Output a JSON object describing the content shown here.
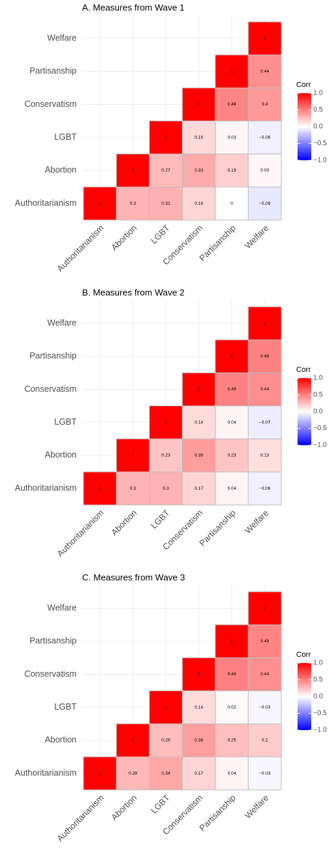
{
  "chart_data": [
    {
      "type": "heatmap",
      "title": "A. Measures from Wave 1",
      "categories": [
        "Authoritarianism",
        "Abortion",
        "LGBT",
        "Conservatism",
        "Partisanship",
        "Welfare"
      ],
      "values": [
        [
          1,
          0.3,
          0.31,
          0.16,
          0,
          -0.09
        ],
        [
          null,
          1,
          0.27,
          0.33,
          0.19,
          0.03
        ],
        [
          null,
          null,
          1,
          0.15,
          0.03,
          -0.06
        ],
        [
          null,
          null,
          null,
          1,
          0.48,
          0.4
        ],
        [
          null,
          null,
          null,
          null,
          1,
          0.44
        ],
        [
          null,
          null,
          null,
          null,
          null,
          1
        ]
      ],
      "value_labels": [
        [
          "1",
          "0.3",
          "0.31",
          "0.16",
          "0",
          "−0.09"
        ],
        [
          null,
          "1",
          "0.27",
          "0.33",
          "0.19",
          "0.03"
        ],
        [
          null,
          null,
          "1",
          "0.15",
          "0.03",
          "−0.06"
        ],
        [
          null,
          null,
          null,
          "1",
          "0.48",
          "0.4"
        ],
        [
          null,
          null,
          null,
          null,
          "1",
          "0.44"
        ],
        [
          null,
          null,
          null,
          null,
          null,
          "1"
        ]
      ],
      "legend_title": "Corr",
      "zlim": [
        -1,
        1
      ],
      "zticks": [
        {
          "value": 1,
          "label": "1.0"
        },
        {
          "value": 0.5,
          "label": "0.5"
        },
        {
          "value": 0,
          "label": "0.0"
        },
        {
          "value": -0.5,
          "label": "−0.5"
        },
        {
          "value": -1,
          "label": "−1.0"
        }
      ],
      "colors": [
        "#0000FF",
        "#FFFFFF",
        "#FF0000"
      ],
      "grid": true
    },
    {
      "type": "heatmap",
      "title": "B. Measures from Wave 2",
      "categories": [
        "Authoritarianism",
        "Abortion",
        "LGBT",
        "Conservatism",
        "Partisanship",
        "Welfare"
      ],
      "values": [
        [
          1,
          0.3,
          0.3,
          0.17,
          0.04,
          -0.06
        ],
        [
          null,
          1,
          0.23,
          0.39,
          0.23,
          0.13
        ],
        [
          null,
          null,
          1,
          0.14,
          0.04,
          -0.07
        ],
        [
          null,
          null,
          null,
          1,
          0.49,
          0.44
        ],
        [
          null,
          null,
          null,
          null,
          1,
          0.49
        ],
        [
          null,
          null,
          null,
          null,
          null,
          1
        ]
      ],
      "value_labels": [
        [
          "1",
          "0.3",
          "0.3",
          "0.17",
          "0.04",
          "−0.06"
        ],
        [
          null,
          "1",
          "0.23",
          "0.39",
          "0.23",
          "0.13"
        ],
        [
          null,
          null,
          "1",
          "0.14",
          "0.04",
          "−0.07"
        ],
        [
          null,
          null,
          null,
          "1",
          "0.49",
          "0.44"
        ],
        [
          null,
          null,
          null,
          null,
          "1",
          "0.49"
        ],
        [
          null,
          null,
          null,
          null,
          null,
          "1"
        ]
      ],
      "legend_title": "Corr",
      "zlim": [
        -1,
        1
      ],
      "zticks": [
        {
          "value": 1,
          "label": "1.0"
        },
        {
          "value": 0.5,
          "label": "0.5"
        },
        {
          "value": 0,
          "label": "0.0"
        },
        {
          "value": -0.5,
          "label": "−0.5"
        },
        {
          "value": -1,
          "label": "−1.0"
        }
      ],
      "colors": [
        "#0000FF",
        "#FFFFFF",
        "#FF0000"
      ],
      "grid": true
    },
    {
      "type": "heatmap",
      "title": "C. Measures from Wave 3",
      "categories": [
        "Authoritarianism",
        "Abortion",
        "LGBT",
        "Conservatism",
        "Partisanship",
        "Welfare"
      ],
      "values": [
        [
          1,
          0.28,
          0.34,
          0.17,
          0.04,
          -0.03
        ],
        [
          null,
          1,
          0.26,
          0.38,
          0.25,
          0.2
        ],
        [
          null,
          null,
          1,
          0.14,
          0.02,
          -0.03
        ],
        [
          null,
          null,
          null,
          1,
          0.49,
          0.44
        ],
        [
          null,
          null,
          null,
          null,
          1,
          0.48
        ],
        [
          null,
          null,
          null,
          null,
          null,
          1
        ]
      ],
      "value_labels": [
        [
          "1",
          "0.28",
          "0.34",
          "0.17",
          "0.04",
          "−0.03"
        ],
        [
          null,
          "1",
          "0.26",
          "0.38",
          "0.25",
          "0.2"
        ],
        [
          null,
          null,
          "1",
          "0.14",
          "0.02",
          "−0.03"
        ],
        [
          null,
          null,
          null,
          "1",
          "0.49",
          "0.44"
        ],
        [
          null,
          null,
          null,
          null,
          "1",
          "0.48"
        ],
        [
          null,
          null,
          null,
          null,
          null,
          "1"
        ]
      ],
      "legend_title": "Corr",
      "zlim": [
        -1,
        1
      ],
      "zticks": [
        {
          "value": 1,
          "label": "1.0"
        },
        {
          "value": 0.5,
          "label": "0.5"
        },
        {
          "value": 0,
          "label": "0.0"
        },
        {
          "value": -0.5,
          "label": "−0.5"
        },
        {
          "value": -1,
          "label": "−1.0"
        }
      ],
      "colors": [
        "#0000FF",
        "#FFFFFF",
        "#FF0000"
      ],
      "grid": true
    }
  ]
}
